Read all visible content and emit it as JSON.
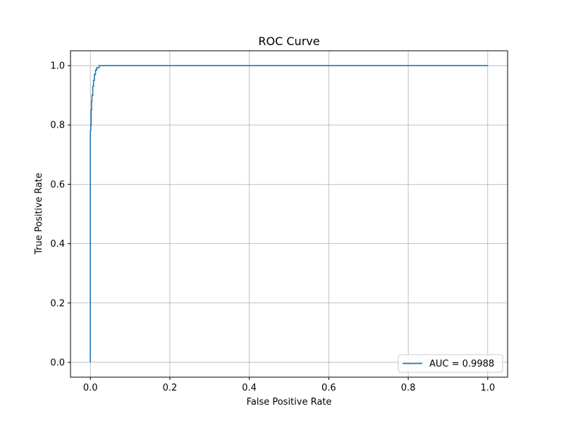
{
  "chart_data": {
    "type": "line",
    "title": "ROC Curve",
    "xlabel": "False Positive Rate",
    "ylabel": "True Positive Rate",
    "xlim": [
      -0.05,
      1.05
    ],
    "ylim": [
      -0.05,
      1.05
    ],
    "grid": true,
    "legend_position": "lower-right",
    "x_ticks": [
      "0.0",
      "0.2",
      "0.4",
      "0.6",
      "0.8",
      "1.0"
    ],
    "y_ticks": [
      "0.0",
      "0.2",
      "0.4",
      "0.6",
      "0.8",
      "1.0"
    ],
    "series": [
      {
        "name": "AUC = 0.9988",
        "color": "#1f77b4",
        "x": [
          0.0,
          0.0,
          0.001,
          0.001,
          0.002,
          0.002,
          0.003,
          0.003,
          0.004,
          0.004,
          0.006,
          0.006,
          0.008,
          0.008,
          0.01,
          0.01,
          0.013,
          0.013,
          0.016,
          0.016,
          0.022,
          0.022,
          0.03,
          1.0
        ],
        "y": [
          0.0,
          0.78,
          0.78,
          0.8,
          0.8,
          0.85,
          0.85,
          0.88,
          0.88,
          0.9,
          0.9,
          0.93,
          0.93,
          0.95,
          0.95,
          0.97,
          0.97,
          0.985,
          0.985,
          0.993,
          0.993,
          1.0,
          1.0,
          1.0
        ]
      }
    ]
  }
}
